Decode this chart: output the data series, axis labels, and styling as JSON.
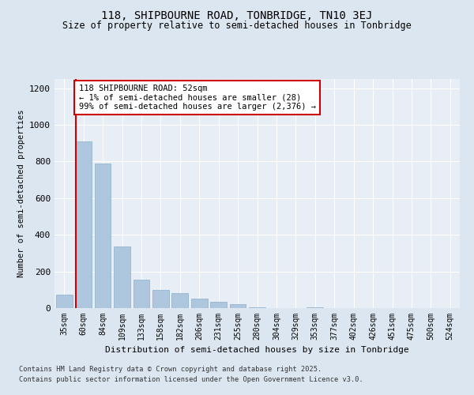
{
  "title1": "118, SHIPBOURNE ROAD, TONBRIDGE, TN10 3EJ",
  "title2": "Size of property relative to semi-detached houses in Tonbridge",
  "xlabel": "Distribution of semi-detached houses by size in Tonbridge",
  "ylabel": "Number of semi-detached properties",
  "categories": [
    "35sqm",
    "60sqm",
    "84sqm",
    "109sqm",
    "133sqm",
    "158sqm",
    "182sqm",
    "206sqm",
    "231sqm",
    "255sqm",
    "280sqm",
    "304sqm",
    "329sqm",
    "353sqm",
    "377sqm",
    "402sqm",
    "426sqm",
    "451sqm",
    "475sqm",
    "500sqm",
    "524sqm"
  ],
  "values": [
    75,
    910,
    790,
    335,
    155,
    100,
    80,
    50,
    35,
    20,
    5,
    0,
    0,
    5,
    0,
    0,
    0,
    0,
    0,
    0,
    0
  ],
  "bar_color": "#aec6de",
  "bar_edgecolor": "#8aaec8",
  "annotation_title": "118 SHIPBOURNE ROAD: 52sqm",
  "annotation_line1": "← 1% of semi-detached houses are smaller (28)",
  "annotation_line2": "99% of semi-detached houses are larger (2,376) →",
  "red_line_color": "#cc0000",
  "annotation_box_edgecolor": "#cc0000",
  "ylim": [
    0,
    1250
  ],
  "yticks": [
    0,
    200,
    400,
    600,
    800,
    1000,
    1200
  ],
  "footer1": "Contains HM Land Registry data © Crown copyright and database right 2025.",
  "footer2": "Contains public sector information licensed under the Open Government Licence v3.0.",
  "bg_color": "#dce6f0",
  "plot_bg_color": "#e8eef5"
}
